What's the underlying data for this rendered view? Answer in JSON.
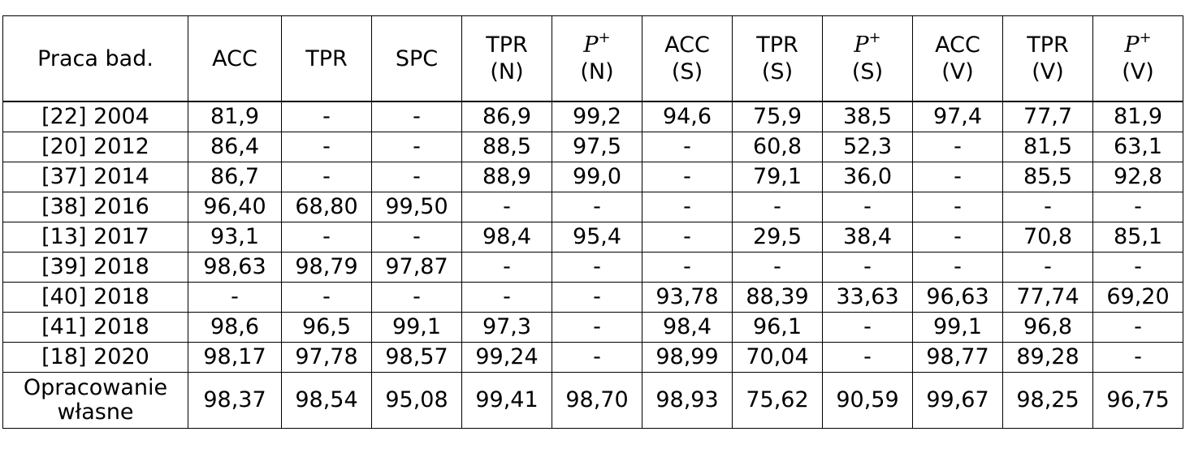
{
  "table": {
    "headers": [
      {
        "lines": [
          "Praca bad."
        ]
      },
      {
        "lines": [
          "ACC"
        ]
      },
      {
        "lines": [
          "TPR"
        ]
      },
      {
        "lines": [
          "SPC"
        ]
      },
      {
        "lines": [
          "TPR",
          "(N)"
        ]
      },
      {
        "ppv": true,
        "sym": "P",
        "sup": "+",
        "sub": "(N)"
      },
      {
        "lines": [
          "ACC",
          "(S)"
        ]
      },
      {
        "lines": [
          "TPR",
          "(S)"
        ]
      },
      {
        "ppv": true,
        "sym": "P",
        "sup": "+",
        "sub": "(S)"
      },
      {
        "lines": [
          "ACC",
          "(V)"
        ]
      },
      {
        "lines": [
          "TPR",
          "(V)"
        ]
      },
      {
        "ppv": true,
        "sym": "P",
        "sup": "+",
        "sub": "(V)"
      }
    ],
    "rows": [
      [
        "[22] 2004",
        "81,9",
        "-",
        "-",
        "86,9",
        "99,2",
        "94,6",
        "75,9",
        "38,5",
        "97,4",
        "77,7",
        "81,9"
      ],
      [
        "[20] 2012",
        "86,4",
        "-",
        "-",
        "88,5",
        "97,5",
        "-",
        "60,8",
        "52,3",
        "-",
        "81,5",
        "63,1"
      ],
      [
        "[37] 2014",
        "86,7",
        "-",
        "-",
        "88,9",
        "99,0",
        "-",
        "79,1",
        "36,0",
        "-",
        "85,5",
        "92,8"
      ],
      [
        "[38] 2016",
        "96,40",
        "68,80",
        "99,50",
        "-",
        "-",
        "-",
        "-",
        "-",
        "-",
        "-",
        "-"
      ],
      [
        "[13] 2017",
        "93,1",
        "-",
        "-",
        "98,4",
        "95,4",
        "-",
        "29,5",
        "38,4",
        "-",
        "70,8",
        "85,1"
      ],
      [
        "[39] 2018",
        "98,63",
        "98,79",
        "97,87",
        "-",
        "-",
        "-",
        "-",
        "-",
        "-",
        "-",
        "-"
      ],
      [
        "[40] 2018",
        "-",
        "-",
        "-",
        "-",
        "-",
        "93,78",
        "88,39",
        "33,63",
        "96,63",
        "77,74",
        "69,20"
      ],
      [
        "[41] 2018",
        "98,6",
        "96,5",
        "99,1",
        "97,3",
        "-",
        "98,4",
        "96,1",
        "-",
        "99,1",
        "96,8",
        "-"
      ],
      [
        "[18] 2020",
        "98,17",
        "97,78",
        "98,57",
        "99,24",
        "-",
        "98,99",
        "70,04",
        "-",
        "98,77",
        "89,28",
        "-"
      ]
    ],
    "last_row": {
      "label_lines": [
        "Opracowanie",
        "własne"
      ],
      "values": [
        "98,37",
        "98,54",
        "95,08",
        "99,41",
        "98,70",
        "98,93",
        "75,62",
        "90,59",
        "99,67",
        "98,25",
        "96,75"
      ]
    }
  }
}
